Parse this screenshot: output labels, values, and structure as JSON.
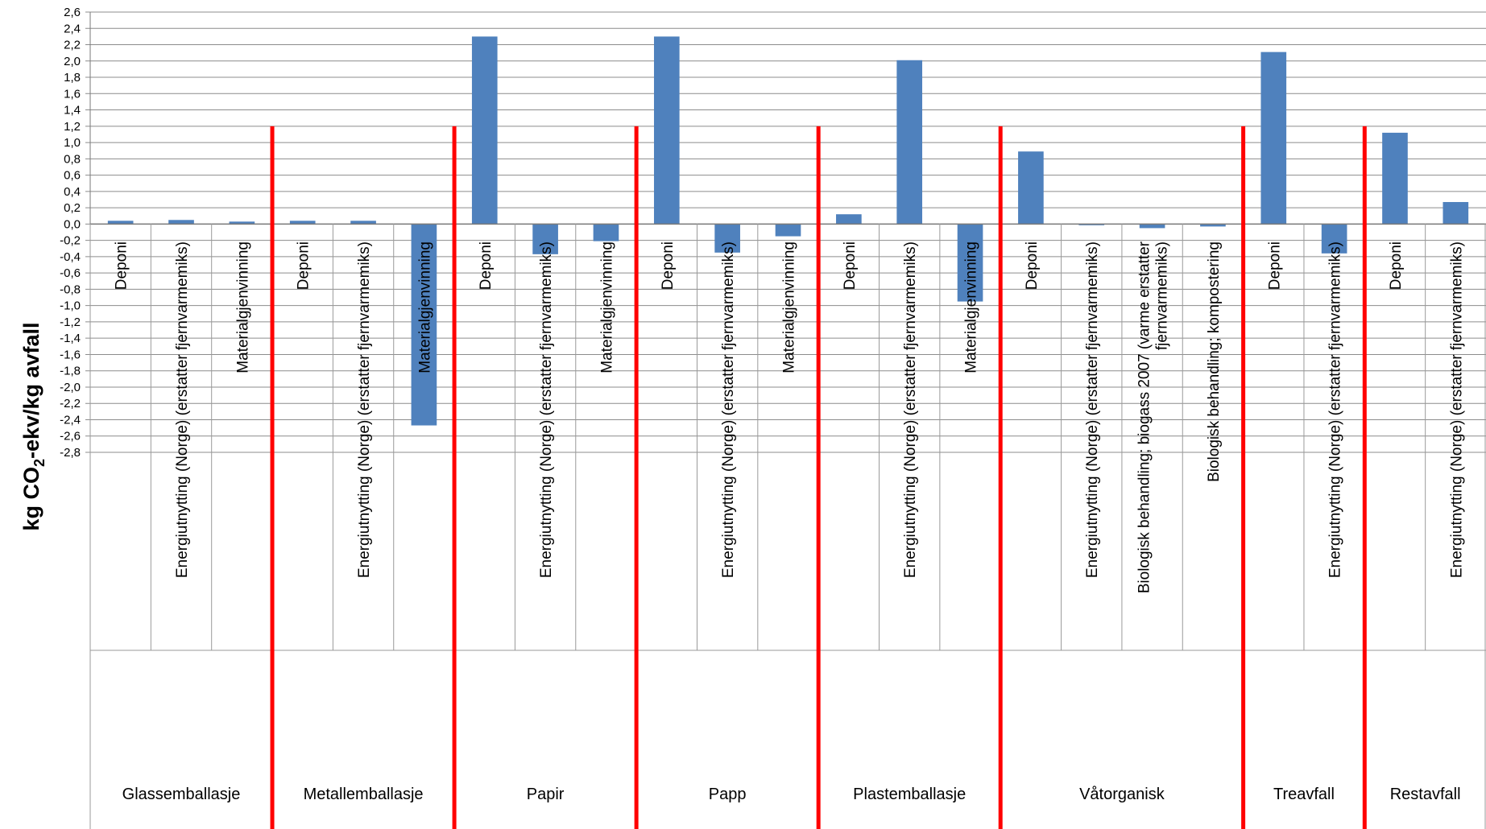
{
  "chart_data": {
    "type": "bar",
    "ylabel": {
      "main": "kg CO",
      "sub": "2",
      "rest": "-ekv/kg avfall"
    },
    "ylim": [
      -2.8,
      2.6
    ],
    "ytick_step": 0.2,
    "grid": true,
    "colors": {
      "bar": "#4F81BD",
      "separator": "#FF0000",
      "grid": "#8C8C8C"
    },
    "groups": [
      {
        "name": "Glassemballasje",
        "items": [
          {
            "label": "Deponi",
            "value": 0.04
          },
          {
            "label": "Energiutnytting (Norge) (erstatter fjernvarmemiks)",
            "value": 0.05
          },
          {
            "label": "Materialgjenvinning",
            "value": 0.03
          }
        ]
      },
      {
        "name": "Metallemballasje",
        "items": [
          {
            "label": "Deponi",
            "value": 0.04
          },
          {
            "label": "Energiutnytting (Norge) (erstatter fjernvarmemiks)",
            "value": 0.04
          },
          {
            "label": "Materialgjenvinning",
            "value": -2.47
          }
        ]
      },
      {
        "name": "Papir",
        "items": [
          {
            "label": "Deponi",
            "value": 2.3
          },
          {
            "label": "Energiutnytting (Norge) (erstatter fjernvarmemiks)",
            "value": -0.37
          },
          {
            "label": "Materialgjenvinning",
            "value": -0.21
          }
        ]
      },
      {
        "name": "Papp",
        "items": [
          {
            "label": "Deponi",
            "value": 2.3
          },
          {
            "label": "Energiutnytting (Norge) (erstatter fjernvarmemiks)",
            "value": -0.35
          },
          {
            "label": "Materialgjenvinning",
            "value": -0.15
          }
        ]
      },
      {
        "name": "Plastemballasje",
        "items": [
          {
            "label": "Deponi",
            "value": 0.12
          },
          {
            "label": "Energiutnytting (Norge) (erstatter fjernvarmemiks)",
            "value": 2.01
          },
          {
            "label": "Materialgjenvinning",
            "value": -0.95
          }
        ]
      },
      {
        "name": "Våtorganisk",
        "items": [
          {
            "label": "Deponi",
            "value": 0.89
          },
          {
            "label": "Energiutnytting (Norge) (erstatter fjernvarmemiks)",
            "value": -0.01
          },
          {
            "label": "Biologisk behandling; biogass 2007 (varme erstatter fjernvarmemiks)",
            "value": -0.05
          },
          {
            "label": "Biologisk behandling; kompostering",
            "value": -0.03
          }
        ]
      },
      {
        "name": "Treavfall",
        "items": [
          {
            "label": "Deponi",
            "value": 2.11
          },
          {
            "label": "Energiutnytting (Norge) (erstatter fjernvarmemiks)",
            "value": -0.36
          }
        ]
      },
      {
        "name": "Restavfall",
        "items": [
          {
            "label": "Deponi",
            "value": 1.12
          },
          {
            "label": "Energiutnytting (Norge) (erstatter fjernvarmemiks)",
            "value": 0.27
          }
        ]
      }
    ]
  }
}
